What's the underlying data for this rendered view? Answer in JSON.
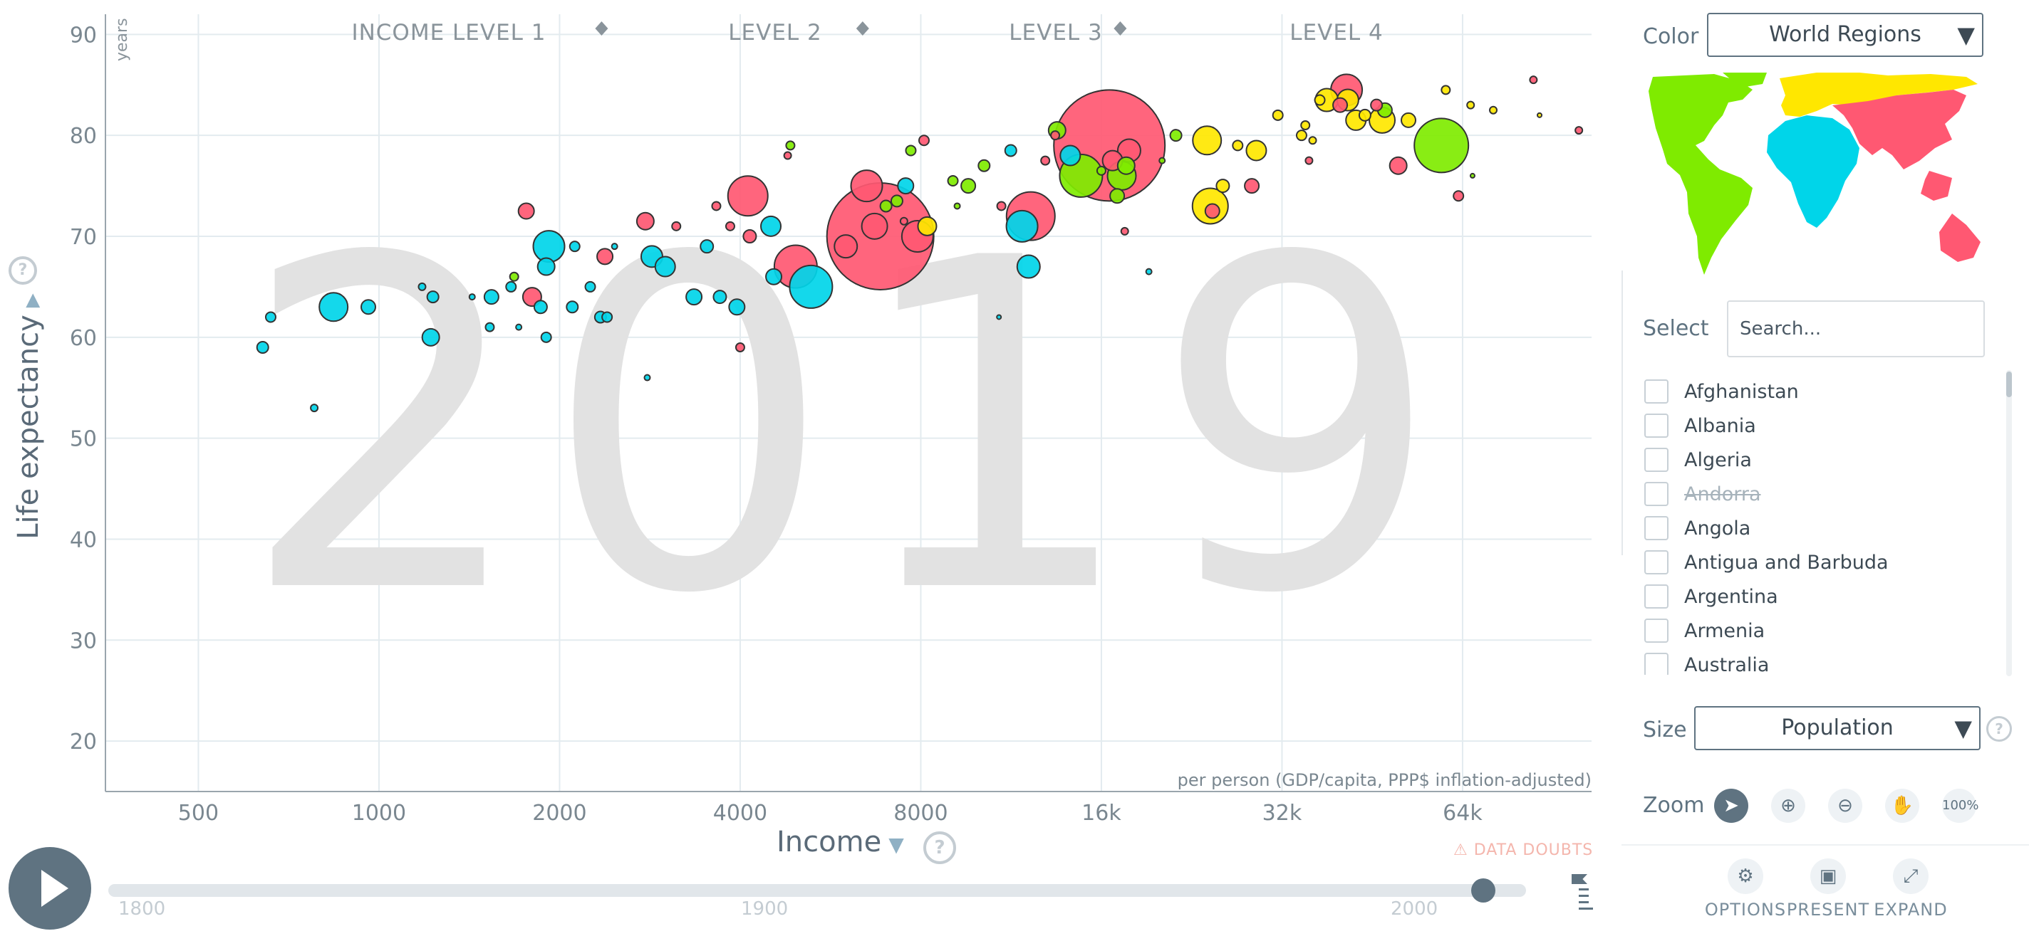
{
  "chart_data": {
    "type": "scatter",
    "title": "",
    "year_watermark": "2019",
    "xlabel": "Income",
    "x_unit_note": "per person (GDP/capita, PPP$ inflation-adjusted)",
    "ylabel": "Life expectancy",
    "y_unit": "years",
    "x_scale": "log2",
    "xlim": [
      350,
      105000
    ],
    "ylim": [
      15,
      92
    ],
    "x_ticks": [
      500,
      1000,
      2000,
      4000,
      8000,
      16000,
      32000,
      64000
    ],
    "x_tick_labels": [
      "500",
      "1000",
      "2000",
      "4000",
      "8000",
      "16k",
      "32k",
      "64k"
    ],
    "y_ticks": [
      20,
      30,
      40,
      50,
      60,
      70,
      80,
      90
    ],
    "income_levels": [
      "INCOME LEVEL 1",
      "LEVEL 2",
      "LEVEL 3",
      "LEVEL 4"
    ],
    "income_level_boundaries": [
      2350,
      6400,
      17200
    ],
    "grid": true,
    "size_by": "Population",
    "color_by": "World Regions",
    "region_colors": {
      "africa": "#00d5e9",
      "americas": "#7feb00",
      "asia": "#ff5872",
      "europe": "#ffe700"
    },
    "points": [
      {
        "x": 640,
        "y": 59,
        "r": 8,
        "region": "africa"
      },
      {
        "x": 660,
        "y": 62,
        "r": 7,
        "region": "africa"
      },
      {
        "x": 780,
        "y": 53,
        "r": 5,
        "region": "africa"
      },
      {
        "x": 840,
        "y": 63,
        "r": 20,
        "region": "africa"
      },
      {
        "x": 960,
        "y": 63,
        "r": 10,
        "region": "africa"
      },
      {
        "x": 1180,
        "y": 65,
        "r": 5,
        "region": "africa"
      },
      {
        "x": 1230,
        "y": 64,
        "r": 8,
        "region": "africa"
      },
      {
        "x": 1220,
        "y": 60,
        "r": 12,
        "region": "africa"
      },
      {
        "x": 1430,
        "y": 64,
        "r": 4,
        "region": "africa"
      },
      {
        "x": 1530,
        "y": 61,
        "r": 6,
        "region": "africa"
      },
      {
        "x": 1540,
        "y": 64,
        "r": 10,
        "region": "africa"
      },
      {
        "x": 1660,
        "y": 65,
        "r": 7,
        "region": "africa"
      },
      {
        "x": 1680,
        "y": 66,
        "r": 6,
        "region": "americas"
      },
      {
        "x": 1710,
        "y": 61,
        "r": 4,
        "region": "africa"
      },
      {
        "x": 1760,
        "y": 72.5,
        "r": 11,
        "region": "asia"
      },
      {
        "x": 1800,
        "y": 64,
        "r": 13,
        "region": "asia"
      },
      {
        "x": 1860,
        "y": 63,
        "r": 9,
        "region": "africa"
      },
      {
        "x": 1900,
        "y": 67,
        "r": 12,
        "region": "africa"
      },
      {
        "x": 1920,
        "y": 69,
        "r": 22,
        "region": "africa"
      },
      {
        "x": 1900,
        "y": 60,
        "r": 7,
        "region": "africa"
      },
      {
        "x": 2100,
        "y": 63,
        "r": 8,
        "region": "africa"
      },
      {
        "x": 2120,
        "y": 69,
        "r": 7,
        "region": "africa"
      },
      {
        "x": 2250,
        "y": 65,
        "r": 7,
        "region": "africa"
      },
      {
        "x": 2340,
        "y": 62,
        "r": 8,
        "region": "africa"
      },
      {
        "x": 2380,
        "y": 68,
        "r": 11,
        "region": "asia"
      },
      {
        "x": 2400,
        "y": 62,
        "r": 7,
        "region": "africa"
      },
      {
        "x": 2470,
        "y": 69,
        "r": 4,
        "region": "africa"
      },
      {
        "x": 2800,
        "y": 56,
        "r": 4,
        "region": "africa"
      },
      {
        "x": 2780,
        "y": 71.5,
        "r": 12,
        "region": "asia"
      },
      {
        "x": 2850,
        "y": 68,
        "r": 15,
        "region": "africa"
      },
      {
        "x": 3000,
        "y": 67,
        "r": 14,
        "region": "africa"
      },
      {
        "x": 3130,
        "y": 71,
        "r": 6,
        "region": "asia"
      },
      {
        "x": 3350,
        "y": 64,
        "r": 11,
        "region": "africa"
      },
      {
        "x": 3520,
        "y": 69,
        "r": 9,
        "region": "africa"
      },
      {
        "x": 3650,
        "y": 73,
        "r": 6,
        "region": "asia"
      },
      {
        "x": 3700,
        "y": 64,
        "r": 9,
        "region": "africa"
      },
      {
        "x": 3850,
        "y": 71,
        "r": 6,
        "region": "asia"
      },
      {
        "x": 3950,
        "y": 63,
        "r": 11,
        "region": "africa"
      },
      {
        "x": 4000,
        "y": 59,
        "r": 6,
        "region": "asia"
      },
      {
        "x": 4120,
        "y": 74,
        "r": 28,
        "region": "asia"
      },
      {
        "x": 4150,
        "y": 70,
        "r": 9,
        "region": "asia"
      },
      {
        "x": 4500,
        "y": 71,
        "r": 14,
        "region": "africa"
      },
      {
        "x": 4550,
        "y": 66,
        "r": 11,
        "region": "africa"
      },
      {
        "x": 4800,
        "y": 78,
        "r": 5,
        "region": "asia"
      },
      {
        "x": 4850,
        "y": 79,
        "r": 6,
        "region": "americas"
      },
      {
        "x": 4950,
        "y": 67,
        "r": 30,
        "region": "asia"
      },
      {
        "x": 5250,
        "y": 65,
        "r": 30,
        "region": "africa"
      },
      {
        "x": 6850,
        "y": 70,
        "r": 75,
        "region": "asia"
      },
      {
        "x": 6000,
        "y": 69,
        "r": 16,
        "region": "asia"
      },
      {
        "x": 6500,
        "y": 75,
        "r": 22,
        "region": "asia"
      },
      {
        "x": 6700,
        "y": 71,
        "r": 18,
        "region": "asia"
      },
      {
        "x": 7000,
        "y": 73,
        "r": 8,
        "region": "americas"
      },
      {
        "x": 7300,
        "y": 73.5,
        "r": 8,
        "region": "americas"
      },
      {
        "x": 7550,
        "y": 75,
        "r": 11,
        "region": "africa"
      },
      {
        "x": 7700,
        "y": 78.5,
        "r": 7,
        "region": "americas"
      },
      {
        "x": 8100,
        "y": 79.5,
        "r": 7,
        "region": "asia"
      },
      {
        "x": 7900,
        "y": 70,
        "r": 22,
        "region": "asia"
      },
      {
        "x": 8200,
        "y": 71,
        "r": 13,
        "region": "europe"
      },
      {
        "x": 9200,
        "y": 73,
        "r": 4,
        "region": "americas"
      },
      {
        "x": 9600,
        "y": 75,
        "r": 10,
        "region": "americas"
      },
      {
        "x": 10200,
        "y": 77,
        "r": 8,
        "region": "americas"
      },
      {
        "x": 10800,
        "y": 62,
        "r": 3,
        "region": "africa"
      },
      {
        "x": 11300,
        "y": 78.5,
        "r": 8,
        "region": "africa"
      },
      {
        "x": 11800,
        "y": 71,
        "r": 22,
        "region": "africa"
      },
      {
        "x": 12200,
        "y": 72,
        "r": 34,
        "region": "asia"
      },
      {
        "x": 12100,
        "y": 67,
        "r": 16,
        "region": "africa"
      },
      {
        "x": 12900,
        "y": 77.5,
        "r": 6,
        "region": "asia"
      },
      {
        "x": 13500,
        "y": 80.5,
        "r": 12,
        "region": "americas"
      },
      {
        "x": 14200,
        "y": 78,
        "r": 14,
        "region": "africa"
      },
      {
        "x": 14800,
        "y": 76,
        "r": 30,
        "region": "americas"
      },
      {
        "x": 16000,
        "y": 76.5,
        "r": 6,
        "region": "americas"
      },
      {
        "x": 16500,
        "y": 79,
        "r": 78,
        "region": "asia"
      },
      {
        "x": 17000,
        "y": 74,
        "r": 10,
        "region": "americas"
      },
      {
        "x": 16700,
        "y": 77.5,
        "r": 14,
        "region": "asia"
      },
      {
        "x": 17300,
        "y": 76,
        "r": 20,
        "region": "americas"
      },
      {
        "x": 17600,
        "y": 77,
        "r": 12,
        "region": "americas"
      },
      {
        "x": 17800,
        "y": 78.5,
        "r": 16,
        "region": "asia"
      },
      {
        "x": 17500,
        "y": 70.5,
        "r": 5,
        "region": "asia"
      },
      {
        "x": 19200,
        "y": 66.5,
        "r": 4,
        "region": "africa"
      },
      {
        "x": 21300,
        "y": 80,
        "r": 8,
        "region": "americas"
      },
      {
        "x": 24000,
        "y": 79.5,
        "r": 20,
        "region": "europe"
      },
      {
        "x": 24300,
        "y": 73,
        "r": 25,
        "region": "europe"
      },
      {
        "x": 24500,
        "y": 72.5,
        "r": 10,
        "region": "asia"
      },
      {
        "x": 25500,
        "y": 75,
        "r": 9,
        "region": "europe"
      },
      {
        "x": 27000,
        "y": 79,
        "r": 7,
        "region": "europe"
      },
      {
        "x": 28500,
        "y": 75,
        "r": 10,
        "region": "asia"
      },
      {
        "x": 29000,
        "y": 78.5,
        "r": 14,
        "region": "europe"
      },
      {
        "x": 31500,
        "y": 82,
        "r": 7,
        "region": "europe"
      },
      {
        "x": 34500,
        "y": 80,
        "r": 7,
        "region": "europe"
      },
      {
        "x": 35500,
        "y": 77.5,
        "r": 5,
        "region": "asia"
      },
      {
        "x": 37000,
        "y": 83.5,
        "r": 7,
        "region": "europe"
      },
      {
        "x": 38000,
        "y": 83.5,
        "r": 16,
        "region": "europe"
      },
      {
        "x": 40000,
        "y": 83,
        "r": 10,
        "region": "asia"
      },
      {
        "x": 41000,
        "y": 84.5,
        "r": 22,
        "region": "asia"
      },
      {
        "x": 41200,
        "y": 83.5,
        "r": 15,
        "region": "europe"
      },
      {
        "x": 42500,
        "y": 81.5,
        "r": 14,
        "region": "europe"
      },
      {
        "x": 44000,
        "y": 82,
        "r": 8,
        "region": "europe"
      },
      {
        "x": 46000,
        "y": 83,
        "r": 8,
        "region": "asia"
      },
      {
        "x": 47000,
        "y": 81.5,
        "r": 18,
        "region": "europe"
      },
      {
        "x": 47500,
        "y": 82.5,
        "r": 10,
        "region": "americas"
      },
      {
        "x": 50000,
        "y": 77,
        "r": 12,
        "region": "asia"
      },
      {
        "x": 52000,
        "y": 81.5,
        "r": 10,
        "region": "europe"
      },
      {
        "x": 59000,
        "y": 79,
        "r": 38,
        "region": "americas"
      },
      {
        "x": 60000,
        "y": 84.5,
        "r": 6,
        "region": "europe"
      },
      {
        "x": 63000,
        "y": 74,
        "r": 7,
        "region": "asia"
      },
      {
        "x": 66000,
        "y": 83,
        "r": 5,
        "region": "europe"
      },
      {
        "x": 72000,
        "y": 82.5,
        "r": 5,
        "region": "europe"
      },
      {
        "x": 84000,
        "y": 85.5,
        "r": 5,
        "region": "asia"
      },
      {
        "x": 86000,
        "y": 82,
        "r": 3,
        "region": "europe"
      },
      {
        "x": 100000,
        "y": 80.5,
        "r": 5,
        "region": "asia"
      },
      {
        "x": 10900,
        "y": 73,
        "r": 6,
        "region": "asia"
      },
      {
        "x": 13400,
        "y": 80,
        "r": 6,
        "region": "asia"
      },
      {
        "x": 7500,
        "y": 71.5,
        "r": 5,
        "region": "asia"
      },
      {
        "x": 20200,
        "y": 77.5,
        "r": 4,
        "region": "americas"
      },
      {
        "x": 9050,
        "y": 75.5,
        "r": 7,
        "region": "americas"
      },
      {
        "x": 66500,
        "y": 76,
        "r": 3,
        "region": "americas"
      },
      {
        "x": 35000,
        "y": 81,
        "r": 6,
        "region": "europe"
      },
      {
        "x": 36000,
        "y": 79.5,
        "r": 5,
        "region": "europe"
      }
    ]
  },
  "y_help": "?",
  "x_help": "?",
  "data_doubts": "DATA DOUBTS",
  "timeline": {
    "years": [
      "1800",
      "1900",
      "2000"
    ],
    "current": "2019",
    "progress": 0.97
  },
  "panel": {
    "color_label": "Color",
    "color_value": "World Regions",
    "select_label": "Select",
    "search_placeholder": "Search...",
    "countries": [
      {
        "name": "Afghanistan",
        "strike": false
      },
      {
        "name": "Albania",
        "strike": false
      },
      {
        "name": "Algeria",
        "strike": false
      },
      {
        "name": "Andorra",
        "strike": true
      },
      {
        "name": "Angola",
        "strike": false
      },
      {
        "name": "Antigua and Barbuda",
        "strike": false
      },
      {
        "name": "Argentina",
        "strike": false
      },
      {
        "name": "Armenia",
        "strike": false
      },
      {
        "name": "Australia",
        "strike": false
      }
    ],
    "size_label": "Size",
    "size_value": "Population",
    "size_help": "?",
    "zoom_label": "Zoom",
    "zoom_buttons": [
      {
        "name": "select-arrow-button",
        "icon": "cursor-icon"
      },
      {
        "name": "zoom-in-button",
        "icon": "zoom-in-icon"
      },
      {
        "name": "zoom-out-button",
        "icon": "zoom-out-icon"
      },
      {
        "name": "pan-button",
        "icon": "hand-icon"
      },
      {
        "name": "zoom-100-button",
        "label": "100%"
      }
    ],
    "tools": {
      "options": "OPTIONS",
      "present": "PRESENT",
      "expand": "EXPAND"
    }
  }
}
